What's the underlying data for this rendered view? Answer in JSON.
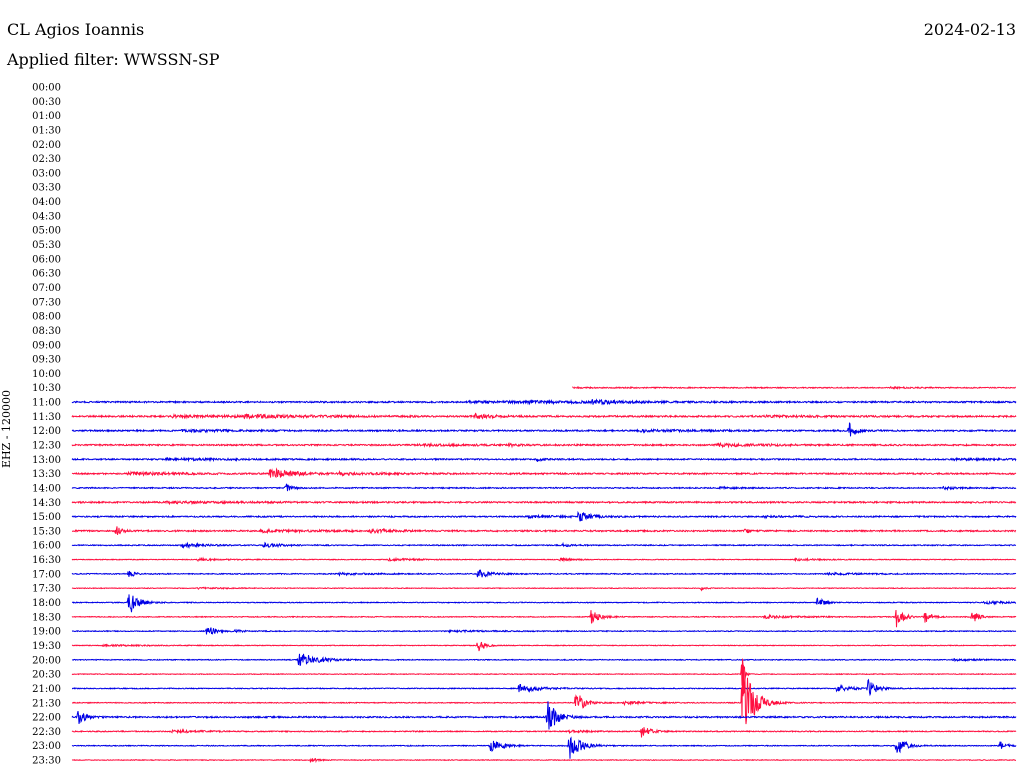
{
  "header": {
    "network_station": "CL Agios Ioannis",
    "filter_label": "Applied filter:",
    "filter_value": "WWSSN-SP",
    "date": "2024-02-13"
  },
  "channel_label": "EHZ - 120000",
  "colors": {
    "even_trace": "#0000e6",
    "odd_trace": "#ff1040"
  },
  "chart_data": {
    "type": "line",
    "title": "CL Agios Ioannis",
    "subtitle": "Applied filter: WWSSN-SP",
    "date": "2024-02-13",
    "ylabel": "EHZ - 120000",
    "time_labels": [
      "00:00",
      "00:30",
      "01:00",
      "01:30",
      "02:00",
      "02:30",
      "03:00",
      "03:30",
      "04:00",
      "04:30",
      "05:00",
      "05:30",
      "06:00",
      "06:30",
      "07:00",
      "07:30",
      "08:00",
      "08:30",
      "09:00",
      "09:30",
      "10:00",
      "10:30",
      "11:00",
      "11:30",
      "12:00",
      "12:30",
      "13:00",
      "13:30",
      "14:00",
      "14:30",
      "15:00",
      "15:30",
      "16:00",
      "16:30",
      "17:00",
      "17:30",
      "18:00",
      "18:30",
      "19:00",
      "19:30",
      "20:00",
      "20:30",
      "21:00",
      "21:30",
      "22:00",
      "22:30",
      "23:00",
      "23:30"
    ],
    "x_range_minutes": [
      0,
      30
    ],
    "data_start": {
      "row": "10:30",
      "minute": 15.9
    },
    "event_scale": "peak amplitude relative to the 30-minute line spacing",
    "rows": [
      {
        "time": "10:30",
        "noise": 0.03,
        "events": [
          [
            6.4,
            0.05,
            10
          ],
          [
            11,
            0.03,
            12
          ],
          [
            26,
            0.05,
            1.8
          ]
        ]
      },
      {
        "time": "11:00",
        "noise": 0.05,
        "events": [
          [
            14.5,
            0.08,
            3
          ],
          [
            16.5,
            0.12,
            2
          ],
          [
            12.6,
            0.04,
            10
          ]
        ]
      },
      {
        "time": "11:30",
        "noise": 0.055,
        "events": [
          [
            12.8,
            0.16,
            1.2
          ],
          [
            5.5,
            0.09,
            4
          ],
          [
            3.2,
            0.06,
            6
          ],
          [
            22,
            0.05,
            4
          ]
        ]
      },
      {
        "time": "12:00",
        "noise": 0.05,
        "events": [
          [
            24.7,
            0.55,
            0.45
          ],
          [
            3.5,
            0.06,
            4
          ],
          [
            18,
            0.06,
            4
          ]
        ]
      },
      {
        "time": "12:30",
        "noise": 0.05,
        "events": [
          [
            13.9,
            0.1,
            0.5
          ],
          [
            20.5,
            0.1,
            3
          ],
          [
            11,
            0.05,
            4
          ]
        ]
      },
      {
        "time": "13:00",
        "noise": 0.045,
        "events": [
          [
            14.8,
            0.2,
            0.4
          ],
          [
            3,
            0.06,
            5
          ],
          [
            28,
            0.05,
            4
          ]
        ]
      },
      {
        "time": "13:30",
        "noise": 0.05,
        "events": [
          [
            6.3,
            0.42,
            1.3
          ],
          [
            1.8,
            0.1,
            3
          ],
          [
            8.5,
            0.08,
            3
          ]
        ]
      },
      {
        "time": "14:00",
        "noise": 0.04,
        "events": [
          [
            6.8,
            0.3,
            0.4
          ],
          [
            20.6,
            0.06,
            1
          ],
          [
            27.7,
            0.08,
            1.2
          ]
        ]
      },
      {
        "time": "14:30",
        "noise": 0.05,
        "events": [
          [
            3,
            0.06,
            5
          ]
        ]
      },
      {
        "time": "15:00",
        "noise": 0.045,
        "events": [
          [
            16.1,
            0.42,
            0.6
          ],
          [
            14.5,
            0.06,
            3
          ],
          [
            22,
            0.05,
            2
          ]
        ]
      },
      {
        "time": "15:30",
        "noise": 0.05,
        "events": [
          [
            1.4,
            0.35,
            0.35
          ],
          [
            9.5,
            0.13,
            1.5
          ],
          [
            21.4,
            0.22,
            0.3
          ],
          [
            6,
            0.07,
            4
          ]
        ]
      },
      {
        "time": "16:00",
        "noise": 0.035,
        "events": [
          [
            3.5,
            0.14,
            1.5
          ],
          [
            6.1,
            0.2,
            1
          ],
          [
            15.6,
            0.09,
            0.6
          ]
        ]
      },
      {
        "time": "16:30",
        "noise": 0.025,
        "events": [
          [
            4,
            0.08,
            1.5
          ],
          [
            10,
            0.08,
            2
          ],
          [
            15.5,
            0.1,
            1
          ],
          [
            23,
            0.06,
            2
          ]
        ]
      },
      {
        "time": "17:00",
        "noise": 0.035,
        "events": [
          [
            1.8,
            0.28,
            0.35
          ],
          [
            12.9,
            0.3,
            0.8
          ],
          [
            8.5,
            0.07,
            2
          ],
          [
            24,
            0.07,
            2
          ]
        ]
      },
      {
        "time": "17:30",
        "noise": 0.025,
        "events": [
          [
            20,
            0.14,
            0.25
          ],
          [
            4,
            0.05,
            2
          ]
        ]
      },
      {
        "time": "18:00",
        "noise": 0.03,
        "events": [
          [
            1.8,
            1.0,
            0.55
          ],
          [
            23.7,
            0.45,
            0.35
          ],
          [
            29,
            0.1,
            1.5
          ]
        ]
      },
      {
        "time": "18:30",
        "noise": 0.03,
        "events": [
          [
            16.5,
            0.5,
            0.55
          ],
          [
            26.2,
            0.72,
            0.5
          ],
          [
            27.1,
            0.58,
            0.35
          ],
          [
            28.6,
            0.45,
            0.45
          ],
          [
            22,
            0.1,
            2
          ]
        ]
      },
      {
        "time": "19:00",
        "noise": 0.03,
        "events": [
          [
            4.3,
            0.5,
            0.5
          ],
          [
            5.2,
            0.1,
            0.5
          ],
          [
            12,
            0.05,
            3
          ]
        ]
      },
      {
        "time": "19:30",
        "noise": 0.025,
        "events": [
          [
            12.9,
            0.62,
            0.35
          ],
          [
            1,
            0.05,
            3
          ]
        ]
      },
      {
        "time": "20:00",
        "noise": 0.03,
        "events": [
          [
            7.2,
            0.55,
            1.2
          ],
          [
            28,
            0.06,
            2
          ]
        ]
      },
      {
        "time": "20:30",
        "noise": 0.025,
        "events": [
          [
            21.3,
            1.9,
            0.12
          ]
        ]
      },
      {
        "time": "21:00",
        "noise": 0.03,
        "events": [
          [
            14.2,
            0.3,
            1.3
          ],
          [
            25.3,
            0.65,
            0.5
          ],
          [
            24.3,
            0.25,
            0.9
          ]
        ]
      },
      {
        "time": "21:30",
        "noise": 0.03,
        "events": [
          [
            21.3,
            3.0,
            0.7
          ],
          [
            16,
            0.85,
            0.55
          ],
          [
            17.5,
            0.12,
            1.2
          ]
        ]
      },
      {
        "time": "22:00",
        "noise": 0.05,
        "events": [
          [
            0.2,
            0.5,
            0.45
          ],
          [
            15.1,
            1.35,
            0.55
          ]
        ]
      },
      {
        "time": "22:30",
        "noise": 0.035,
        "events": [
          [
            18.1,
            0.42,
            0.55
          ],
          [
            3.2,
            0.1,
            1.5
          ],
          [
            15.8,
            0.08,
            1.2
          ]
        ]
      },
      {
        "time": "23:00",
        "noise": 0.03,
        "events": [
          [
            13.3,
            0.55,
            0.7
          ],
          [
            15.8,
            1.0,
            0.7
          ],
          [
            26.2,
            0.62,
            0.6
          ],
          [
            29.5,
            0.3,
            0.4
          ]
        ]
      },
      {
        "time": "23:30",
        "noise": 0.025,
        "events": [
          [
            7.6,
            0.25,
            0.35
          ]
        ]
      }
    ]
  }
}
